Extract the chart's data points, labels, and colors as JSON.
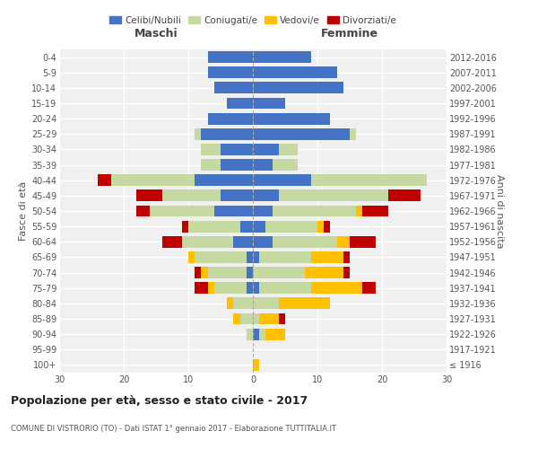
{
  "age_groups": [
    "100+",
    "95-99",
    "90-94",
    "85-89",
    "80-84",
    "75-79",
    "70-74",
    "65-69",
    "60-64",
    "55-59",
    "50-54",
    "45-49",
    "40-44",
    "35-39",
    "30-34",
    "25-29",
    "20-24",
    "15-19",
    "10-14",
    "5-9",
    "0-4"
  ],
  "birth_years": [
    "≤ 1916",
    "1917-1921",
    "1922-1926",
    "1927-1931",
    "1932-1936",
    "1937-1941",
    "1942-1946",
    "1947-1951",
    "1952-1956",
    "1957-1961",
    "1962-1966",
    "1967-1971",
    "1972-1976",
    "1977-1981",
    "1982-1986",
    "1987-1991",
    "1992-1996",
    "1997-2001",
    "2002-2006",
    "2007-2011",
    "2012-2016"
  ],
  "males": {
    "celibi": [
      0,
      0,
      0,
      0,
      0,
      1,
      1,
      1,
      3,
      2,
      6,
      5,
      9,
      5,
      5,
      8,
      7,
      4,
      6,
      7,
      7
    ],
    "coniugati": [
      0,
      0,
      1,
      2,
      3,
      5,
      6,
      8,
      8,
      8,
      10,
      9,
      13,
      3,
      3,
      1,
      0,
      0,
      0,
      0,
      0
    ],
    "vedovi": [
      0,
      0,
      0,
      1,
      1,
      1,
      1,
      1,
      0,
      0,
      0,
      0,
      0,
      0,
      0,
      0,
      0,
      0,
      0,
      0,
      0
    ],
    "divorziati": [
      0,
      0,
      0,
      0,
      0,
      2,
      1,
      0,
      3,
      1,
      2,
      4,
      2,
      0,
      0,
      0,
      0,
      0,
      0,
      0,
      0
    ]
  },
  "females": {
    "nubili": [
      0,
      0,
      1,
      0,
      0,
      1,
      0,
      1,
      3,
      2,
      3,
      4,
      9,
      3,
      4,
      15,
      12,
      5,
      14,
      13,
      9
    ],
    "coniugate": [
      0,
      0,
      1,
      1,
      4,
      8,
      8,
      8,
      10,
      8,
      13,
      17,
      18,
      4,
      3,
      1,
      0,
      0,
      0,
      0,
      0
    ],
    "vedove": [
      1,
      0,
      3,
      3,
      8,
      8,
      6,
      5,
      2,
      1,
      1,
      0,
      0,
      0,
      0,
      0,
      0,
      0,
      0,
      0,
      0
    ],
    "divorziate": [
      0,
      0,
      0,
      1,
      0,
      2,
      1,
      1,
      4,
      1,
      4,
      5,
      0,
      0,
      0,
      0,
      0,
      0,
      0,
      0,
      0
    ]
  },
  "colors": {
    "celibi": "#4472c4",
    "coniugati": "#c5d9a0",
    "vedovi": "#ffc000",
    "divorziati": "#c00000"
  },
  "title": "Popolazione per età, sesso e stato civile - 2017",
  "subtitle": "COMUNE DI VISTRORIO (TO) - Dati ISTAT 1° gennaio 2017 - Elaborazione TUTTITALIA.IT",
  "xlabel_left": "Maschi",
  "xlabel_right": "Femmine",
  "ylabel_left": "Fasce di età",
  "ylabel_right": "Anni di nascita",
  "xlim": 30,
  "bg_color": "#ffffff",
  "plot_bg_color": "#f0f0f0",
  "grid_color": "#ffffff",
  "legend_labels": [
    "Celibi/Nubili",
    "Coniugati/e",
    "Vedovi/e",
    "Divorziati/e"
  ]
}
